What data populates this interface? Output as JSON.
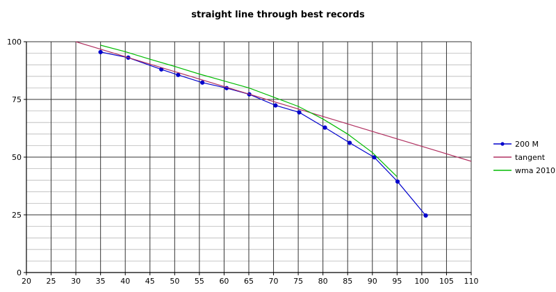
{
  "chart_data": {
    "type": "line",
    "title": "straight line through best records",
    "xlabel": "",
    "ylabel": "",
    "xlim": [
      20,
      110
    ],
    "ylim": [
      0,
      100
    ],
    "x_ticks": [
      20,
      25,
      30,
      35,
      40,
      45,
      50,
      55,
      60,
      65,
      70,
      75,
      80,
      85,
      90,
      95,
      100,
      105,
      110
    ],
    "y_ticks": [
      0,
      25,
      50,
      75,
      100
    ],
    "y_minor_step": 5,
    "grid": true,
    "legend_position": "right",
    "series": [
      {
        "name": "200 M",
        "color": "#0000cc",
        "marker": "circle",
        "points": [
          [
            35,
            95.5
          ],
          [
            40.6,
            93.1
          ],
          [
            47.3,
            88.0
          ],
          [
            50.7,
            85.6
          ],
          [
            55.6,
            82.3
          ],
          [
            60.5,
            79.9
          ],
          [
            65.1,
            77.2
          ],
          [
            70.4,
            72.4
          ],
          [
            75.2,
            69.4
          ],
          [
            80.4,
            62.8
          ],
          [
            85.4,
            56.2
          ],
          [
            90.4,
            49.9
          ],
          [
            95.1,
            39.4
          ],
          [
            100.8,
            24.7
          ]
        ]
      },
      {
        "name": "tangent",
        "color": "#b03060",
        "marker": "none",
        "points": [
          [
            30,
            100
          ],
          [
            110,
            48.2
          ]
        ]
      },
      {
        "name": "wma 2010",
        "color": "#00bb00",
        "marker": "none",
        "points": [
          [
            35,
            98.5
          ],
          [
            40,
            95.7
          ],
          [
            45,
            92.4
          ],
          [
            50,
            89.3
          ],
          [
            55,
            86.0
          ],
          [
            60,
            83.0
          ],
          [
            65,
            80.0
          ],
          [
            70,
            76.0
          ],
          [
            75,
            72.0
          ],
          [
            80,
            66.5
          ],
          [
            85,
            60.0
          ],
          [
            90,
            52.0
          ],
          [
            95,
            41.5
          ]
        ]
      }
    ]
  }
}
